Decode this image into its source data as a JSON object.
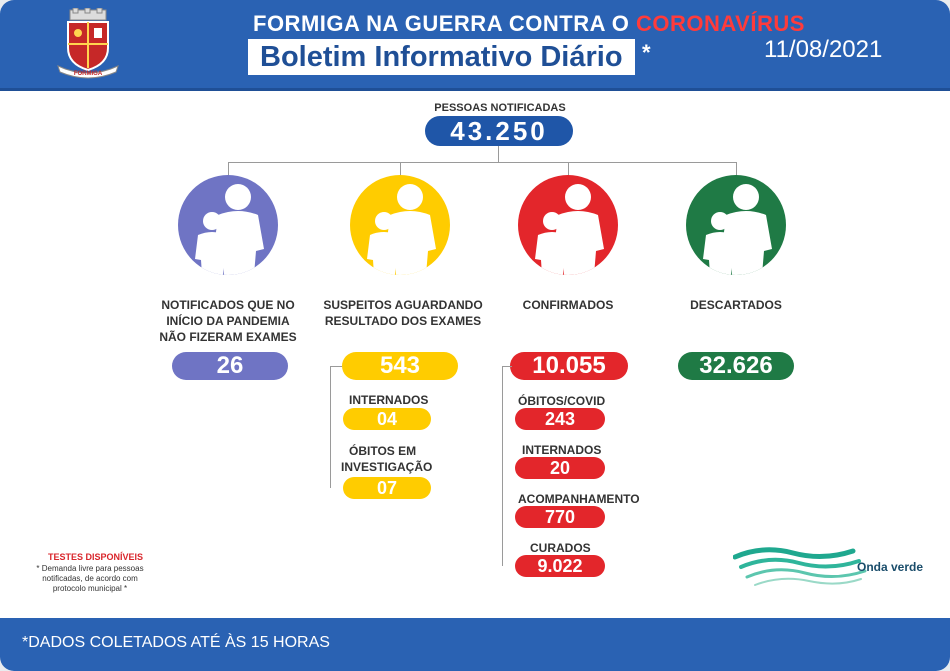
{
  "header": {
    "title_prefix": "FORMIGA NA GUERRA CONTRA O",
    "title_highlight": "CORONAVÍRUS",
    "subtitle": "Boletim Informativo Diário",
    "subtitle_mark": "*",
    "date": "11/08/2021",
    "logo_text": "FORMIGA"
  },
  "notified": {
    "label": "PESSOAS NOTIFICADAS",
    "value": "43.250"
  },
  "columns": [
    {
      "label_lines": [
        "NOTIFICADOS QUE NO",
        "INÍCIO DA PANDEMIA",
        "NÃO FIZERAM EXAMES"
      ],
      "value": "26",
      "color": "#6f74c4"
    },
    {
      "label_lines": [
        "SUSPEITOS AGUARDANDO",
        "RESULTADO DOS EXAMES"
      ],
      "value": "543",
      "color": "#ffcc00"
    },
    {
      "label_lines": [
        "CONFIRMADOS"
      ],
      "value": "10.055",
      "color": "#e3262b"
    },
    {
      "label_lines": [
        "DESCARTADOS"
      ],
      "value": "32.626",
      "color": "#1f7a45"
    }
  ],
  "suspects_detail": [
    {
      "label_lines": [
        "INTERNADOS"
      ],
      "value": "04"
    },
    {
      "label_lines": [
        "ÓBITOS EM",
        "INVESTIGAÇÃO"
      ],
      "value": "07"
    }
  ],
  "confirmed_detail": [
    {
      "label": "ÓBITOS/COVID",
      "value": "243"
    },
    {
      "label": "INTERNADOS",
      "value": "20"
    },
    {
      "label": "ACOMPANHAMENTO",
      "value": "770"
    },
    {
      "label": "CURADOS",
      "value": "9.022"
    }
  ],
  "note": {
    "title": "TESTES DISPONÍVEIS",
    "body": "* Demanda livre para pessoas notificadas, de acordo com protocolo municipal *"
  },
  "brand": {
    "name": "Onda verde"
  },
  "footer": {
    "text": "*DADOS COLETADOS ATÉ ÀS 15 HORAS"
  },
  "colors": {
    "header_blue": "#2a62b3",
    "notified_blue": "#1f56a8",
    "purple": "#6f74c4",
    "yellow": "#ffcc00",
    "red": "#e3262b",
    "green": "#1f7a45",
    "title_red": "#ff3b3b"
  }
}
